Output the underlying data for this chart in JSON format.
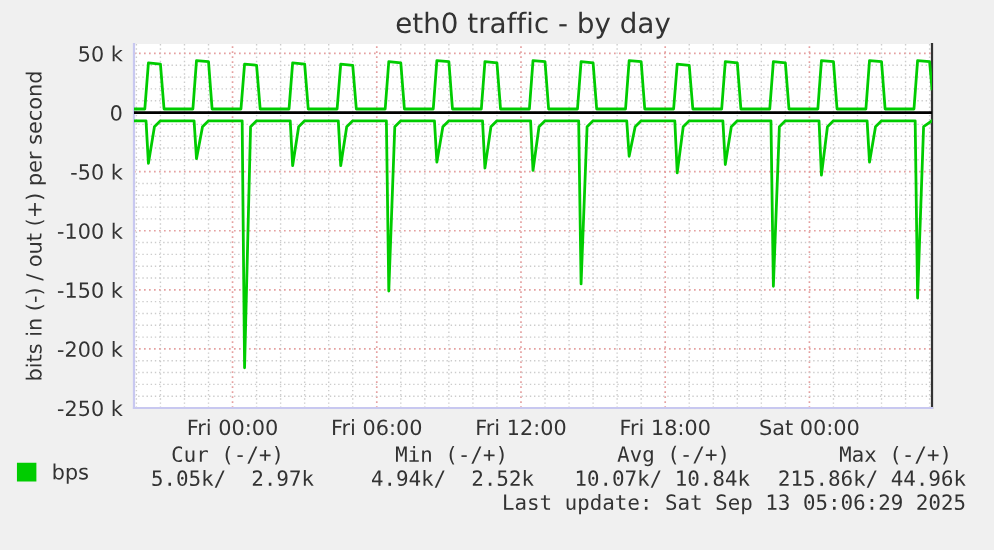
{
  "chart_data": {
    "type": "line",
    "title": "eth0 traffic - by day",
    "ylabel": "bits in (-) / out (+) per second",
    "xlim": [
      "2025-09-11T19:54",
      "2025-09-13T05:06"
    ],
    "xticks": [
      {
        "value": "2025-09-12T00:00",
        "label": "Fri 00:00"
      },
      {
        "value": "2025-09-12T06:00",
        "label": "Fri 06:00"
      },
      {
        "value": "2025-09-12T12:00",
        "label": "Fri 12:00"
      },
      {
        "value": "2025-09-12T18:00",
        "label": "Fri 18:00"
      },
      {
        "value": "2025-09-13T00:00",
        "label": "Sat 00:00"
      }
    ],
    "ylim": [
      -250000,
      58000
    ],
    "yticks": [
      {
        "value": 50000,
        "label": "50 k"
      },
      0,
      {
        "value": -50000,
        "label": "-50 k"
      },
      {
        "value": -100000,
        "label": "-100 k"
      },
      {
        "value": -150000,
        "label": "-150 k"
      },
      {
        "value": -200000,
        "label": "-200 k"
      },
      {
        "value": -250000,
        "label": "-250 k"
      }
    ],
    "grid": true,
    "legend": "bottom",
    "marker": "none",
    "line_style": "solid",
    "ref_lines": [
      {
        "axis": "y",
        "value": 0,
        "color": "#000000"
      }
    ],
    "series": [
      {
        "name": "bps",
        "color": "#00cc00",
        "x": [
          "2025-09-11T19:54",
          "2025-09-11T20:21",
          "2025-09-11T20:30",
          "2025-09-11T21:00",
          "2025-09-11T21:09",
          "2025-09-11T22:21",
          "2025-09-11T22:30",
          "2025-09-11T23:00",
          "2025-09-11T23:09",
          "2025-09-12T00:21",
          "2025-09-12T00:30",
          "2025-09-12T01:00",
          "2025-09-12T01:09",
          "2025-09-12T02:21",
          "2025-09-12T02:30",
          "2025-09-12T03:00",
          "2025-09-12T03:09",
          "2025-09-12T04:21",
          "2025-09-12T04:30",
          "2025-09-12T05:00",
          "2025-09-12T05:09",
          "2025-09-12T06:21",
          "2025-09-12T06:30",
          "2025-09-12T07:00",
          "2025-09-12T07:09",
          "2025-09-12T08:21",
          "2025-09-12T08:30",
          "2025-09-12T09:00",
          "2025-09-12T09:09",
          "2025-09-12T10:21",
          "2025-09-12T10:30",
          "2025-09-12T11:00",
          "2025-09-12T11:09",
          "2025-09-12T12:21",
          "2025-09-12T12:30",
          "2025-09-12T13:00",
          "2025-09-12T13:09",
          "2025-09-12T14:21",
          "2025-09-12T14:30",
          "2025-09-12T15:00",
          "2025-09-12T15:09",
          "2025-09-12T16:21",
          "2025-09-12T16:30",
          "2025-09-12T17:00",
          "2025-09-12T17:09",
          "2025-09-12T18:21",
          "2025-09-12T18:30",
          "2025-09-12T19:00",
          "2025-09-12T19:09",
          "2025-09-12T20:21",
          "2025-09-12T20:30",
          "2025-09-12T21:00",
          "2025-09-12T21:09",
          "2025-09-12T22:21",
          "2025-09-12T22:30",
          "2025-09-12T23:00",
          "2025-09-12T23:09",
          "2025-09-13T00:21",
          "2025-09-13T00:30",
          "2025-09-13T01:00",
          "2025-09-13T01:09",
          "2025-09-13T02:21",
          "2025-09-13T02:30",
          "2025-09-13T03:00",
          "2025-09-13T03:09",
          "2025-09-13T04:21",
          "2025-09-13T04:30",
          "2025-09-13T05:00",
          "2025-09-13T05:06"
        ],
        "values": [
          3000,
          3000,
          42000,
          41000,
          3000,
          3000,
          44000,
          43000,
          3000,
          3000,
          41000,
          40000,
          3000,
          3000,
          42000,
          41000,
          3000,
          3000,
          41000,
          40000,
          3000,
          3000,
          43000,
          42000,
          3000,
          3000,
          44000,
          43000,
          3000,
          3000,
          43000,
          42000,
          3000,
          3000,
          44000,
          43000,
          3000,
          3000,
          43000,
          42000,
          3000,
          3000,
          44000,
          43000,
          3000,
          3000,
          41000,
          40000,
          3000,
          3000,
          43000,
          42000,
          3000,
          3000,
          43000,
          42000,
          3000,
          3000,
          44000,
          43000,
          3000,
          3000,
          44000,
          43000,
          3000,
          3000,
          44000,
          43000,
          20000
        ]
      },
      {
        "color": "#00cc00",
        "x": [
          "2025-09-11T19:54",
          "2025-09-11T20:24",
          "2025-09-11T20:30",
          "2025-09-11T20:45",
          "2025-09-11T21:00",
          "2025-09-11T22:24",
          "2025-09-11T22:30",
          "2025-09-11T22:45",
          "2025-09-11T23:00",
          "2025-09-12T00:24",
          "2025-09-12T00:30",
          "2025-09-12T00:45",
          "2025-09-12T01:00",
          "2025-09-12T02:24",
          "2025-09-12T02:30",
          "2025-09-12T02:45",
          "2025-09-12T03:00",
          "2025-09-12T04:24",
          "2025-09-12T04:30",
          "2025-09-12T04:45",
          "2025-09-12T05:00",
          "2025-09-12T06:24",
          "2025-09-12T06:30",
          "2025-09-12T06:45",
          "2025-09-12T07:00",
          "2025-09-12T08:24",
          "2025-09-12T08:30",
          "2025-09-12T08:45",
          "2025-09-12T09:00",
          "2025-09-12T10:24",
          "2025-09-12T10:30",
          "2025-09-12T10:45",
          "2025-09-12T11:00",
          "2025-09-12T12:24",
          "2025-09-12T12:30",
          "2025-09-12T12:45",
          "2025-09-12T13:00",
          "2025-09-12T14:24",
          "2025-09-12T14:30",
          "2025-09-12T14:45",
          "2025-09-12T15:00",
          "2025-09-12T16:24",
          "2025-09-12T16:30",
          "2025-09-12T16:45",
          "2025-09-12T17:00",
          "2025-09-12T18:24",
          "2025-09-12T18:30",
          "2025-09-12T18:45",
          "2025-09-12T19:00",
          "2025-09-12T20:24",
          "2025-09-12T20:30",
          "2025-09-12T20:45",
          "2025-09-12T21:00",
          "2025-09-12T22:24",
          "2025-09-12T22:30",
          "2025-09-12T22:45",
          "2025-09-12T23:00",
          "2025-09-13T00:24",
          "2025-09-13T00:30",
          "2025-09-13T00:45",
          "2025-09-13T01:00",
          "2025-09-13T02:24",
          "2025-09-13T02:30",
          "2025-09-13T02:45",
          "2025-09-13T03:00",
          "2025-09-13T04:24",
          "2025-09-13T04:30",
          "2025-09-13T04:45",
          "2025-09-13T05:06"
        ],
        "values": [
          -7000,
          -7000,
          -43000,
          -12000,
          -7000,
          -7000,
          -39000,
          -12000,
          -7000,
          -7000,
          -216000,
          -12000,
          -7000,
          -7000,
          -45000,
          -12000,
          -7000,
          -7000,
          -45000,
          -12000,
          -7000,
          -7000,
          -151000,
          -12000,
          -7000,
          -7000,
          -42000,
          -12000,
          -7000,
          -7000,
          -47000,
          -12000,
          -7000,
          -7000,
          -49000,
          -12000,
          -7000,
          -7000,
          -145000,
          -12000,
          -7000,
          -7000,
          -37000,
          -12000,
          -7000,
          -7000,
          -51000,
          -12000,
          -7000,
          -7000,
          -44000,
          -12000,
          -7000,
          -7000,
          -147000,
          -12000,
          -7000,
          -7000,
          -53000,
          -12000,
          -7000,
          -7000,
          -42000,
          -12000,
          -7000,
          -7000,
          -157000,
          -12000,
          -7000
        ]
      }
    ],
    "annotations": [
      "Cur (-/+)",
      "Min (-/+)",
      "Avg (-/+)",
      "Max (-/+)",
      "5.05k/  2.97k",
      "4.94k/  2.52k",
      "10.07k/ 10.84k",
      "215.86k/ 44.96k",
      "Last update: Sat Sep 13 05:06:29 2025"
    ]
  }
}
